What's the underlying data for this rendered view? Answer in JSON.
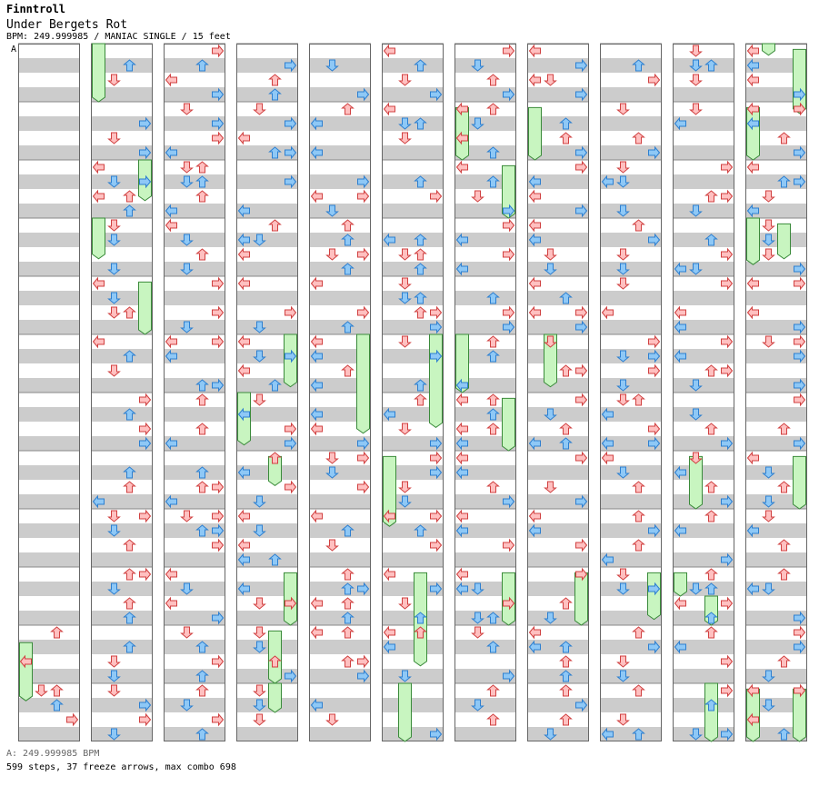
{
  "header": {
    "artist": "Finntroll",
    "song_title": "Under Bergets Rot",
    "info_line": "BPM: 249.999985 / MANIAC SINGLE / 15 feet",
    "bpm_marker": "A"
  },
  "footer": {
    "bpm_note": "A: 249.999985 BPM",
    "stats": "599 steps, 37 freeze arrows, max combo 698"
  },
  "colors": {
    "red_fill": "#ffc0c0",
    "red_stroke": "#d04040",
    "blue_fill": "#8ec8f6",
    "blue_stroke": "#2d7fd0",
    "freeze_fill": "#c8f5c0",
    "freeze_stroke": "#3a8a3a",
    "stripe": "#cccccc"
  },
  "chart_data": {
    "type": "step-chart",
    "columns": 11,
    "measures_per_column": 12,
    "lanes": [
      "left",
      "down",
      "up",
      "right"
    ],
    "total_steps": 599,
    "freeze_arrows": 37,
    "max_combo": 698
  }
}
